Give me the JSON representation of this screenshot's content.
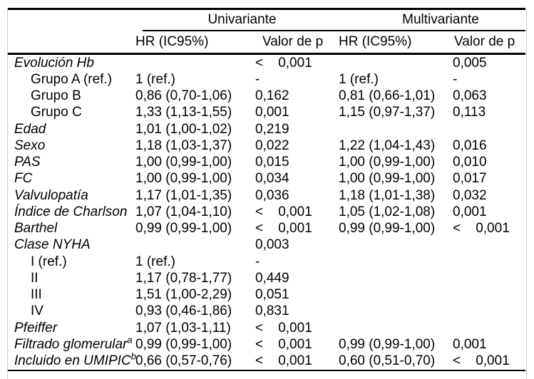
{
  "table": {
    "group_headers": [
      "Univariante",
      "Multivariante"
    ],
    "sub_headers": [
      "HR (IC95%)",
      "Valor de p",
      "HR (IC95%)",
      "Valor de p"
    ],
    "rows": [
      {
        "label": "Evolución Hb",
        "sup": "",
        "italic": true,
        "indent": false,
        "uni_hr": "",
        "uni_p": "<    0,001",
        "multi_hr": "",
        "multi_p": "0,005"
      },
      {
        "label": "Grupo A (ref.)",
        "sup": "",
        "italic": false,
        "indent": true,
        "uni_hr": "1 (ref.)",
        "uni_p": "-",
        "multi_hr": "1 (ref.)",
        "multi_p": "-"
      },
      {
        "label": "Grupo B",
        "sup": "",
        "italic": false,
        "indent": true,
        "uni_hr": "0,86 (0,70-1,06)",
        "uni_p": "0,162",
        "multi_hr": "0,81 (0,66-1,01)",
        "multi_p": "0,063"
      },
      {
        "label": "Grupo C",
        "sup": "",
        "italic": false,
        "indent": true,
        "uni_hr": "1,33 (1,13-1,55)",
        "uni_p": "0,001",
        "multi_hr": "1,15 (0,97-1,37)",
        "multi_p": "0,113"
      },
      {
        "label": "Edad",
        "sup": "",
        "italic": true,
        "indent": false,
        "uni_hr": "1,01 (1,00-1,02)",
        "uni_p": "0,219",
        "multi_hr": "",
        "multi_p": ""
      },
      {
        "label": "Sexo",
        "sup": "",
        "italic": true,
        "indent": false,
        "uni_hr": "1,18 (1,03-1,37)",
        "uni_p": "0,022",
        "multi_hr": "1,22 (1,04-1,43)",
        "multi_p": "0,016"
      },
      {
        "label": "PAS",
        "sup": "",
        "italic": true,
        "indent": false,
        "uni_hr": "1,00 (0,99-1,00)",
        "uni_p": "0,015",
        "multi_hr": "1,00 (0,99-1,00)",
        "multi_p": "0,010"
      },
      {
        "label": "FC",
        "sup": "",
        "italic": true,
        "indent": false,
        "uni_hr": "1,00 (0,99-1,00)",
        "uni_p": "0,034",
        "multi_hr": "1,00 (0,99-1,00)",
        "multi_p": "0,017"
      },
      {
        "label": "Valvulopatía",
        "sup": "",
        "italic": true,
        "indent": false,
        "uni_hr": "1,17 (1,01-1,35)",
        "uni_p": "0,036",
        "multi_hr": "1,18 (1,01-1,38)",
        "multi_p": "0,032"
      },
      {
        "label": "Índice de Charlson",
        "sup": "",
        "italic": true,
        "indent": false,
        "uni_hr": "1,07 (1,04-1,10)",
        "uni_p": "<    0,001",
        "multi_hr": "1,05 (1,02-1,08)",
        "multi_p": "0,001"
      },
      {
        "label": "Barthel",
        "sup": "",
        "italic": true,
        "indent": false,
        "uni_hr": "0,99 (0,99-1,00)",
        "uni_p": "<    0,001",
        "multi_hr": "0,99 (0,99-1,00)",
        "multi_p": "<    0,001"
      },
      {
        "label": "Clase NYHA",
        "sup": "",
        "italic": true,
        "indent": false,
        "uni_hr": "",
        "uni_p": "0,003",
        "multi_hr": "",
        "multi_p": ""
      },
      {
        "label": "I (ref.)",
        "sup": "",
        "italic": false,
        "indent": true,
        "uni_hr": "1 (ref.)",
        "uni_p": "-",
        "multi_hr": "",
        "multi_p": ""
      },
      {
        "label": "II",
        "sup": "",
        "italic": false,
        "indent": true,
        "uni_hr": "1,17 (0,78-1,77)",
        "uni_p": "0,449",
        "multi_hr": "",
        "multi_p": ""
      },
      {
        "label": "III",
        "sup": "",
        "italic": false,
        "indent": true,
        "uni_hr": "1,51 (1,00-2,29)",
        "uni_p": "0,051",
        "multi_hr": "",
        "multi_p": ""
      },
      {
        "label": "IV",
        "sup": "",
        "italic": false,
        "indent": true,
        "uni_hr": "0,93 (0,46-1,86)",
        "uni_p": "0,831",
        "multi_hr": "",
        "multi_p": ""
      },
      {
        "label": "Pfeiffer",
        "sup": "",
        "italic": true,
        "indent": false,
        "uni_hr": "1,07 (1,03-1,11)",
        "uni_p": "<    0,001",
        "multi_hr": "",
        "multi_p": ""
      },
      {
        "label": "Filtrado glomerular",
        "sup": "a",
        "italic": true,
        "indent": false,
        "uni_hr": "0,99 (0,99-1,00)",
        "uni_p": "<    0,001",
        "multi_hr": "0,99 (0,99-1,00)",
        "multi_p": "0,001"
      },
      {
        "label": "Incluido en UMIPIC",
        "sup": "b",
        "italic": true,
        "indent": false,
        "uni_hr": "0,66 (0,57-0,76)",
        "uni_p": "<    0,001",
        "multi_hr": "0,60 (0,51-0,70)",
        "multi_p": "<    0,001"
      }
    ]
  },
  "colors": {
    "background": "#ffffff",
    "text": "#000000",
    "rule": "#000000",
    "frame_line": "#cccccc"
  }
}
